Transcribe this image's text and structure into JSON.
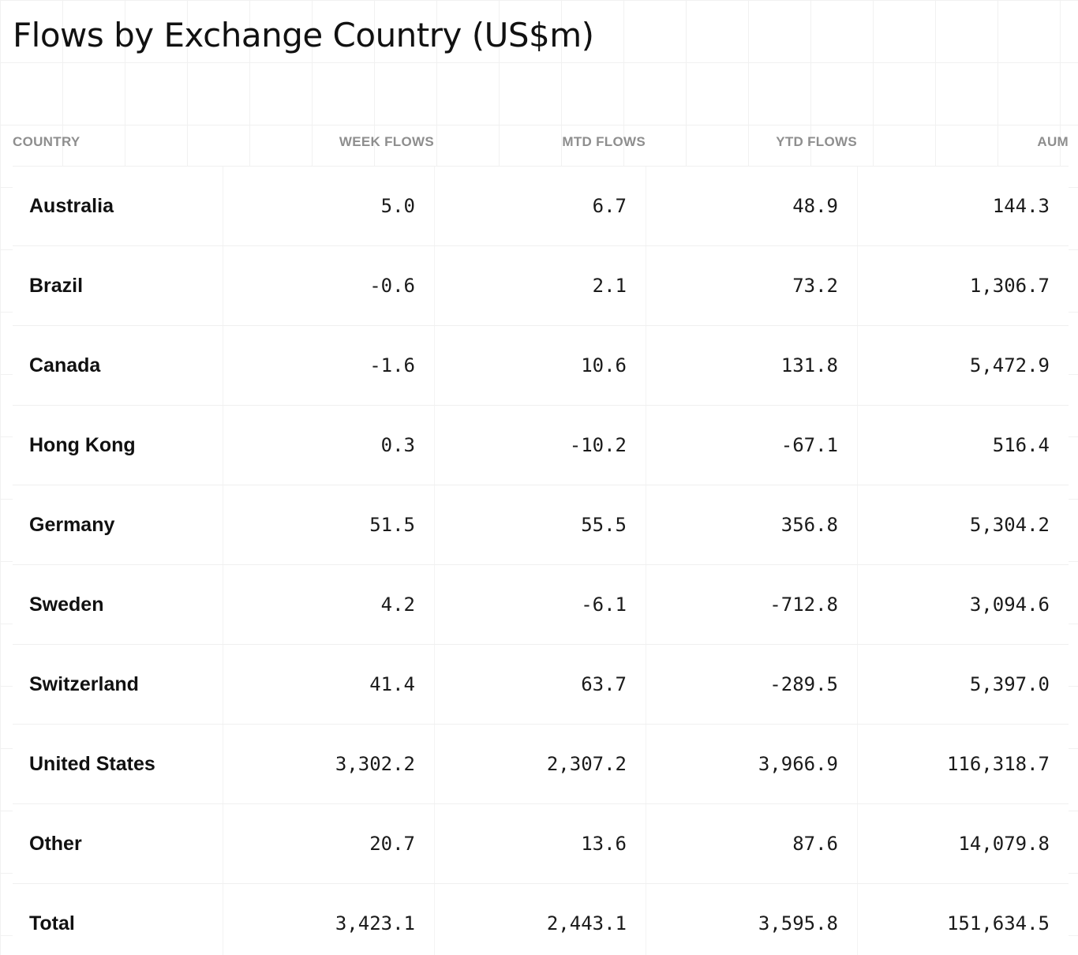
{
  "page": {
    "title": "Flows by Exchange Country (US$m)"
  },
  "table": {
    "columns": [
      "COUNTRY",
      "WEEK FLOWS",
      "MTD FLOWS",
      "YTD FLOWS",
      "AUM"
    ],
    "rows": [
      {
        "country": "Australia",
        "week": "5.0",
        "mtd": "6.7",
        "ytd": "48.9",
        "aum": "144.3"
      },
      {
        "country": "Brazil",
        "week": "-0.6",
        "mtd": "2.1",
        "ytd": "73.2",
        "aum": "1,306.7"
      },
      {
        "country": "Canada",
        "week": "-1.6",
        "mtd": "10.6",
        "ytd": "131.8",
        "aum": "5,472.9"
      },
      {
        "country": "Hong Kong",
        "week": "0.3",
        "mtd": "-10.2",
        "ytd": "-67.1",
        "aum": "516.4"
      },
      {
        "country": "Germany",
        "week": "51.5",
        "mtd": "55.5",
        "ytd": "356.8",
        "aum": "5,304.2"
      },
      {
        "country": "Sweden",
        "week": "4.2",
        "mtd": "-6.1",
        "ytd": "-712.8",
        "aum": "3,094.6"
      },
      {
        "country": "Switzerland",
        "week": "41.4",
        "mtd": "63.7",
        "ytd": "-289.5",
        "aum": "5,397.0"
      },
      {
        "country": "United States",
        "week": "3,302.2",
        "mtd": "2,307.2",
        "ytd": "3,966.9",
        "aum": "116,318.7"
      },
      {
        "country": "Other",
        "week": "20.7",
        "mtd": "13.6",
        "ytd": "87.6",
        "aum": "14,079.8"
      },
      {
        "country": "Total",
        "week": "3,423.1",
        "mtd": "2,443.1",
        "ytd": "3,595.8",
        "aum": "151,634.5"
      }
    ]
  }
}
